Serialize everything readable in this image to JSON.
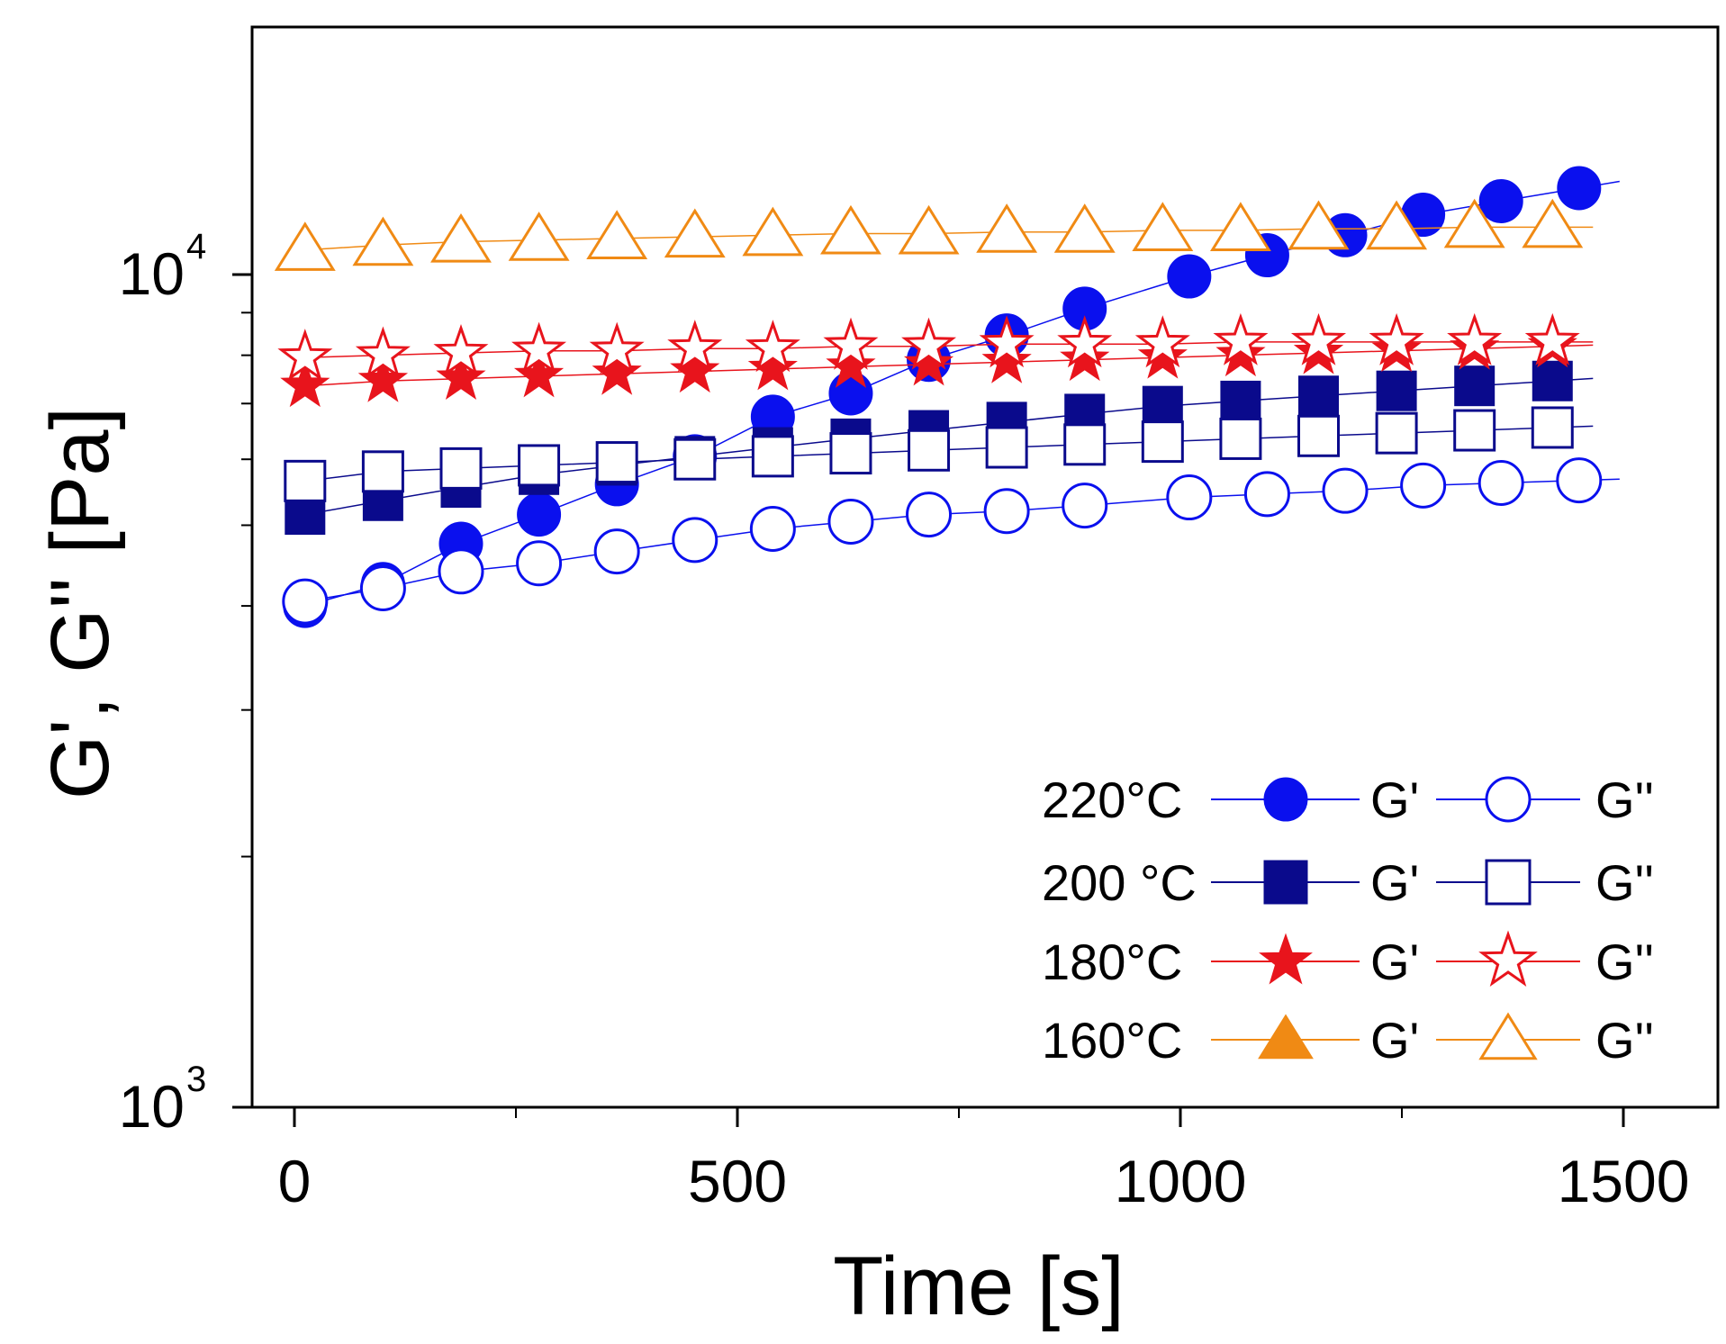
{
  "chart_data": {
    "type": "scatter",
    "xlabel": "Time [s]",
    "ylabel": "G', G'' [Pa]",
    "xlim": [
      -25,
      1600
    ],
    "ylim": [
      1000,
      20000
    ],
    "yscale": "log",
    "xticks": [
      0,
      500,
      1000,
      1500
    ],
    "xtick_labels": [
      "0",
      "500",
      "1000",
      "1500"
    ],
    "xminor_ticks": [
      250,
      750,
      1250
    ],
    "yticks": [
      1000,
      10000
    ],
    "ytick_labels": [
      {
        "base": "10",
        "exp": "3"
      },
      {
        "base": "10",
        "exp": "4"
      }
    ],
    "yminor_ticks": [
      2000,
      3000,
      4000,
      5000,
      6000,
      7000,
      8000,
      9000
    ],
    "grid": false,
    "legend": {
      "position": "bottom-right",
      "rows": [
        {
          "label": "220°C",
          "gp": "G'",
          "gpp": "G''",
          "color": "#0a10ee"
        },
        {
          "label": "200 °C",
          "gp": "G'",
          "gpp": "G''",
          "color": "#0a0a8c"
        },
        {
          "label": "180°C",
          "gp": "G'",
          "gpp": "G''",
          "color": "#e8141c"
        },
        {
          "label": "160°C",
          "gp": "G'",
          "gpp": "G''",
          "color": "#f08a14"
        }
      ]
    },
    "series": [
      {
        "temperature": "220°C",
        "modulus": "G'",
        "marker": "circle",
        "filled": true,
        "color": "#0a10ee",
        "x": [
          12,
          100,
          188,
          276,
          364,
          452,
          540,
          628,
          716,
          804,
          892,
          1010,
          1098,
          1186,
          1274,
          1362,
          1450
        ],
        "y": [
          4000,
          4250,
          4750,
          5150,
          5600,
          6050,
          6750,
          7200,
          7900,
          8450,
          9100,
          9950,
          10550,
          11150,
          11800,
          12250,
          12700
        ]
      },
      {
        "temperature": "220°C",
        "modulus": "G''",
        "marker": "circle",
        "filled": false,
        "color": "#0a10ee",
        "x": [
          12,
          100,
          188,
          276,
          364,
          452,
          540,
          628,
          716,
          804,
          892,
          1010,
          1098,
          1186,
          1274,
          1362,
          1450
        ],
        "y": [
          4050,
          4200,
          4400,
          4500,
          4650,
          4800,
          4950,
          5050,
          5150,
          5200,
          5280,
          5400,
          5450,
          5500,
          5580,
          5620,
          5660
        ]
      },
      {
        "temperature": "200 °C",
        "modulus": "G'",
        "marker": "square",
        "filled": true,
        "color": "#0a0a8c",
        "x": [
          12,
          100,
          188,
          276,
          364,
          452,
          540,
          628,
          716,
          804,
          892,
          980,
          1068,
          1156,
          1244,
          1332,
          1420
        ],
        "y": [
          5150,
          5350,
          5550,
          5750,
          5900,
          6050,
          6200,
          6350,
          6500,
          6650,
          6800,
          6950,
          7050,
          7150,
          7250,
          7350,
          7450
        ]
      },
      {
        "temperature": "200 °C",
        "modulus": "G''",
        "marker": "square",
        "filled": false,
        "color": "#0a0a8c",
        "x": [
          12,
          100,
          188,
          276,
          364,
          452,
          540,
          628,
          716,
          804,
          892,
          980,
          1068,
          1156,
          1244,
          1332,
          1420
        ],
        "y": [
          5650,
          5800,
          5850,
          5900,
          5950,
          6000,
          6050,
          6100,
          6150,
          6200,
          6250,
          6300,
          6350,
          6400,
          6450,
          6500,
          6550
        ]
      },
      {
        "temperature": "180°C",
        "modulus": "G'",
        "marker": "star",
        "filled": true,
        "color": "#e8141c",
        "x": [
          12,
          100,
          188,
          276,
          364,
          452,
          540,
          628,
          716,
          804,
          892,
          980,
          1068,
          1156,
          1244,
          1332,
          1420
        ],
        "y": [
          7350,
          7450,
          7500,
          7550,
          7600,
          7650,
          7700,
          7750,
          7800,
          7850,
          7900,
          7950,
          8000,
          8050,
          8100,
          8150,
          8200
        ]
      },
      {
        "temperature": "180°C",
        "modulus": "G''",
        "marker": "star",
        "filled": false,
        "color": "#e8141c",
        "x": [
          12,
          100,
          188,
          276,
          364,
          452,
          540,
          628,
          716,
          804,
          892,
          980,
          1068,
          1156,
          1244,
          1332,
          1420
        ],
        "y": [
          7950,
          8000,
          8050,
          8100,
          8100,
          8150,
          8150,
          8200,
          8200,
          8250,
          8250,
          8250,
          8300,
          8300,
          8300,
          8300,
          8300
        ]
      },
      {
        "temperature": "160°C",
        "modulus": "G''",
        "marker": "triangle",
        "filled": false,
        "color": "#f08a14",
        "x": [
          12,
          100,
          188,
          276,
          364,
          452,
          540,
          628,
          716,
          804,
          892,
          980,
          1068,
          1156,
          1244,
          1332,
          1420
        ],
        "y": [
          10700,
          10850,
          10950,
          11000,
          11050,
          11100,
          11150,
          11200,
          11200,
          11250,
          11250,
          11300,
          11300,
          11350,
          11350,
          11400,
          11400
        ]
      }
    ]
  }
}
